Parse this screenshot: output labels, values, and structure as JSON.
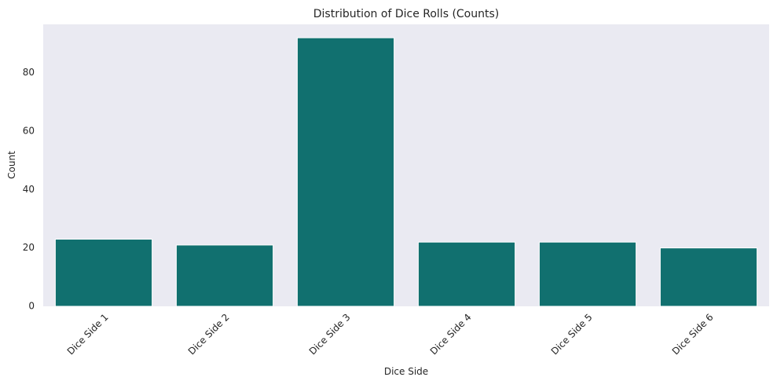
{
  "chart_data": {
    "type": "bar",
    "title": "Distribution of Dice Rolls (Counts)",
    "xlabel": "Dice Side",
    "ylabel": "Count",
    "categories": [
      "Dice Side 1",
      "Dice Side 2",
      "Dice Side 3",
      "Dice Side 4",
      "Dice Side 5",
      "Dice Side 6"
    ],
    "values": [
      23,
      21,
      92,
      22,
      22,
      20
    ],
    "ylim": [
      0,
      96.6
    ],
    "yticks": [
      0,
      20,
      40,
      60,
      80
    ],
    "grid": false,
    "legend": "none",
    "tick_rotation_deg": 45
  },
  "colors": {
    "bar": "#11706f",
    "plot_background": "#eaeaf2",
    "bar_edge": "#ffffff"
  }
}
